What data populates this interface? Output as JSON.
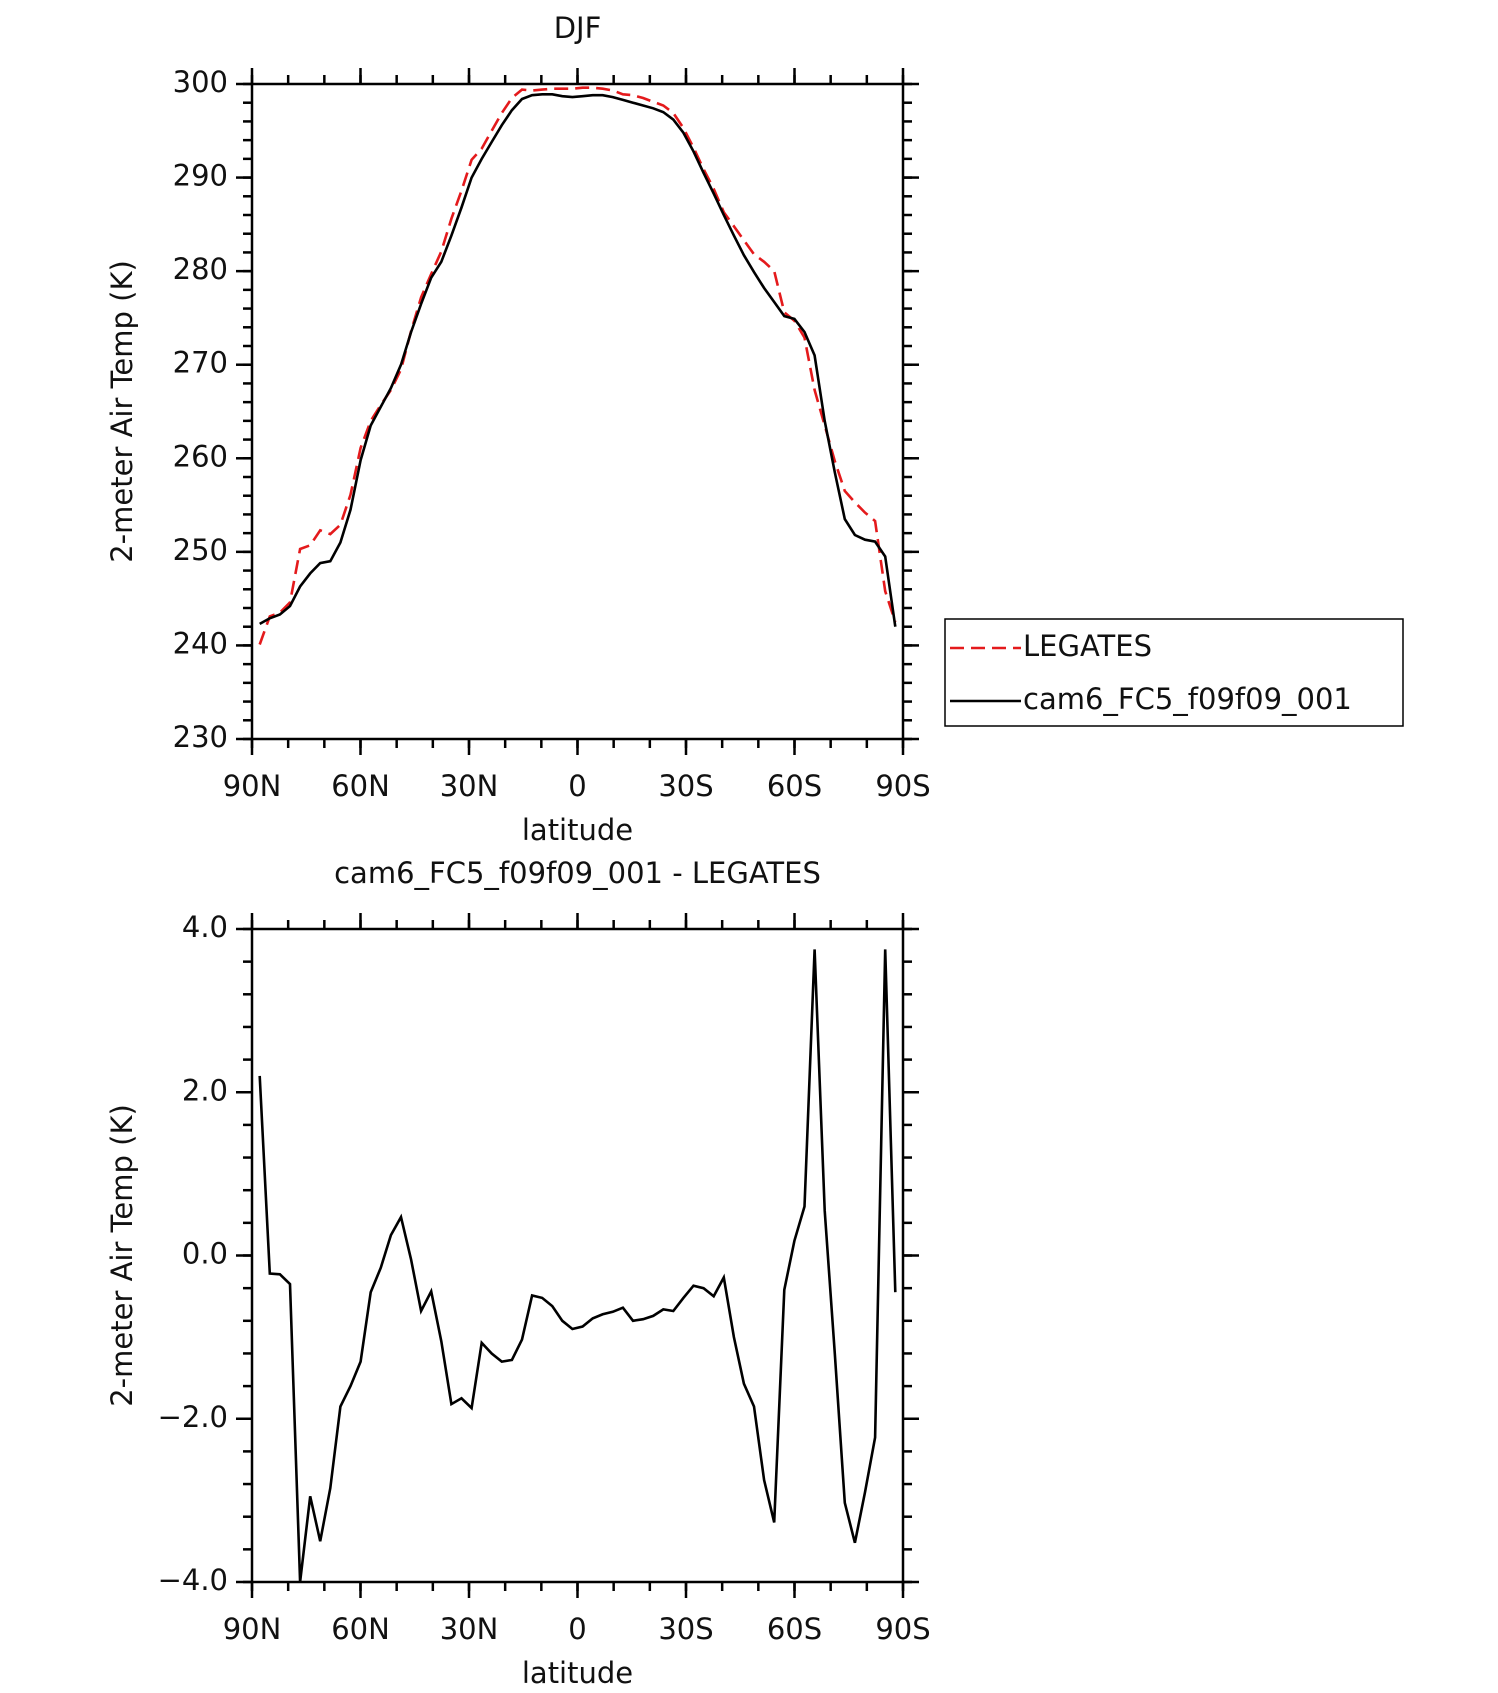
{
  "chart_data": [
    {
      "type": "line",
      "title": "DJF",
      "xlabel": "latitude",
      "ylabel": "2-meter Air Temp (K)",
      "x": [
        87.86,
        85.07,
        82.28,
        79.49,
        76.7,
        73.91,
        71.13,
        68.34,
        65.55,
        62.76,
        59.97,
        57.18,
        54.39,
        51.6,
        48.81,
        46.02,
        43.24,
        40.45,
        37.66,
        34.87,
        32.08,
        29.29,
        26.5,
        23.71,
        20.92,
        18.13,
        15.35,
        12.56,
        9.77,
        6.98,
        4.19,
        1.4,
        -1.4,
        -4.19,
        -6.98,
        -9.77,
        -12.56,
        -15.35,
        -18.13,
        -20.92,
        -23.71,
        -26.5,
        -29.29,
        -32.08,
        -34.87,
        -37.66,
        -40.45,
        -43.24,
        -46.02,
        -48.81,
        -51.6,
        -54.39,
        -57.18,
        -59.97,
        -62.76,
        -65.55,
        -68.34,
        -71.13,
        -73.91,
        -76.7,
        -79.49,
        -82.28,
        -85.07,
        -87.86
      ],
      "xlim": [
        90,
        -90
      ],
      "xticks": [
        {
          "value": 90,
          "label": "90N"
        },
        {
          "value": 60,
          "label": "60N"
        },
        {
          "value": 30,
          "label": "30N"
        },
        0,
        {
          "value": -30,
          "label": "30S"
        },
        {
          "value": -60,
          "label": "60S"
        },
        {
          "value": -90,
          "label": "90S"
        }
      ],
      "ylim": [
        230,
        300
      ],
      "yticks": [
        230,
        240,
        250,
        260,
        270,
        280,
        290,
        300
      ],
      "legend": "right",
      "series": [
        {
          "name": "LEGATES",
          "color": "#e41a1c",
          "line_style": "dashed",
          "values": [
            240.1,
            243.1,
            243.5,
            244.6,
            250.3,
            250.7,
            252.3,
            251.9,
            252.9,
            256.1,
            261.1,
            264.0,
            265.7,
            267.3,
            269.5,
            273.6,
            277.2,
            279.7,
            282.1,
            285.6,
            288.6,
            291.9,
            293.1,
            295.0,
            296.9,
            298.5,
            299.4,
            299.3,
            299.4,
            299.5,
            299.5,
            299.5,
            299.6,
            299.6,
            299.5,
            299.3,
            298.9,
            298.8,
            298.5,
            298.1,
            297.7,
            296.9,
            295.3,
            293.2,
            290.9,
            288.8,
            286.3,
            284.8,
            283.3,
            281.8,
            281.0,
            280.0,
            275.6,
            274.7,
            272.9,
            267.3,
            263.5,
            259.7,
            256.5,
            255.3,
            254.2,
            253.3,
            245.8,
            242.5
          ]
        },
        {
          "name": "cam6_FC5_f09f09_001",
          "color": "#000000",
          "line_style": "solid",
          "values": [
            242.3,
            242.9,
            243.3,
            244.2,
            246.3,
            247.7,
            248.8,
            249.0,
            251.0,
            254.5,
            259.8,
            263.5,
            265.5,
            267.5,
            270.0,
            273.5,
            276.5,
            279.3,
            281.0,
            283.8,
            286.8,
            290.0,
            292.0,
            293.8,
            295.6,
            297.2,
            298.4,
            298.8,
            298.9,
            298.9,
            298.7,
            298.6,
            298.7,
            298.8,
            298.8,
            298.6,
            298.3,
            298.0,
            297.7,
            297.4,
            297.0,
            296.2,
            294.8,
            292.8,
            290.5,
            288.3,
            286.0,
            283.8,
            281.7,
            279.9,
            278.2,
            276.7,
            275.2,
            274.9,
            273.5,
            271.0,
            264.0,
            258.5,
            253.5,
            251.8,
            251.3,
            251.1,
            249.5,
            242.0
          ]
        }
      ]
    },
    {
      "type": "line",
      "title": "cam6_FC5_f09f09_001 - LEGATES",
      "xlabel": "latitude",
      "ylabel": "2-meter Air Temp (K)",
      "x": [
        87.86,
        85.07,
        82.28,
        79.49,
        76.7,
        73.91,
        71.13,
        68.34,
        65.55,
        62.76,
        59.97,
        57.18,
        54.39,
        51.6,
        48.81,
        46.02,
        43.24,
        40.45,
        37.66,
        34.87,
        32.08,
        29.29,
        26.5,
        23.71,
        20.92,
        18.13,
        15.35,
        12.56,
        9.77,
        6.98,
        4.19,
        1.4,
        -1.4,
        -4.19,
        -6.98,
        -9.77,
        -12.56,
        -15.35,
        -18.13,
        -20.92,
        -23.71,
        -26.5,
        -29.29,
        -32.08,
        -34.87,
        -37.66,
        -40.45,
        -43.24,
        -46.02,
        -48.81,
        -51.6,
        -54.39,
        -57.18,
        -59.97,
        -62.76,
        -65.55,
        -68.34,
        -71.13,
        -73.91,
        -76.7,
        -79.49,
        -82.28,
        -85.07,
        -87.86
      ],
      "xlim": [
        90,
        -90
      ],
      "xticks": [
        {
          "value": 90,
          "label": "90N"
        },
        {
          "value": 60,
          "label": "60N"
        },
        {
          "value": 30,
          "label": "30N"
        },
        0,
        {
          "value": -30,
          "label": "30S"
        },
        {
          "value": -60,
          "label": "60S"
        },
        {
          "value": -90,
          "label": "90S"
        }
      ],
      "ylim": [
        -4,
        4
      ],
      "yticks": [
        {
          "value": -4,
          "label": "−4.0"
        },
        {
          "value": -2,
          "label": "−2.0"
        },
        {
          "value": 0,
          "label": "0.0"
        },
        {
          "value": 2,
          "label": "2.0"
        },
        {
          "value": 4,
          "label": "4.0"
        }
      ],
      "color": "#000000",
      "values": [
        2.2,
        -0.22,
        -0.23,
        -0.35,
        -4.0,
        -2.95,
        -3.5,
        -2.85,
        -1.85,
        -1.6,
        -1.3,
        -0.45,
        -0.15,
        0.25,
        0.47,
        -0.05,
        -0.68,
        -0.44,
        -1.05,
        -1.82,
        -1.75,
        -1.87,
        -1.07,
        -1.2,
        -1.3,
        -1.28,
        -1.03,
        -0.49,
        -0.52,
        -0.62,
        -0.8,
        -0.9,
        -0.87,
        -0.77,
        -0.72,
        -0.69,
        -0.64,
        -0.8,
        -0.78,
        -0.74,
        -0.66,
        -0.68,
        -0.52,
        -0.37,
        -0.4,
        -0.5,
        -0.27,
        -1.0,
        -1.57,
        -1.85,
        -2.75,
        -3.27,
        -0.42,
        0.18,
        0.6,
        3.75,
        0.55,
        -1.2,
        -3.03,
        -3.52,
        -2.9,
        -2.23,
        3.75,
        -0.45
      ]
    }
  ]
}
